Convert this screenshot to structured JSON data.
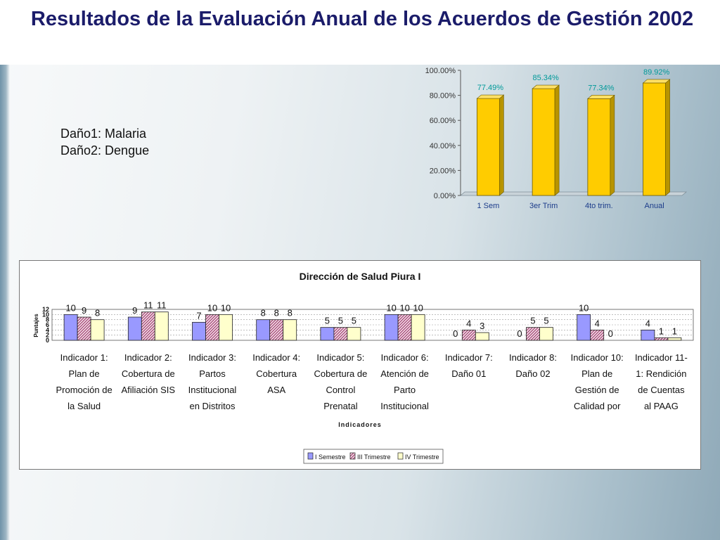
{
  "slide": {
    "title": "Resultados de la Evaluación Anual de los Acuerdos de Gestión 2002",
    "notes": [
      "Daño1: Malaria",
      "Daño2: Dengue"
    ]
  },
  "colors": {
    "title": "#1b1c6a",
    "annual_bar": "#ffcc00",
    "annual_label": "#009999",
    "series1": "#9999ff",
    "series2": "#993366",
    "series3": "#ffffcc"
  },
  "chart_data": [
    {
      "type": "bar",
      "categories": [
        "1 Sem",
        "3er Trim",
        "4to trim.",
        "Anual"
      ],
      "values": [
        77.49,
        85.34,
        77.34,
        89.92
      ],
      "value_labels": [
        "77.49%",
        "85.34%",
        "77.34%",
        "89.92%"
      ],
      "ylim": [
        0,
        100
      ],
      "yticks": [
        "0.00%",
        "20.00%",
        "40.00%",
        "60.00%",
        "80.00%",
        "100.00%"
      ],
      "grid": false,
      "style": "3d"
    },
    {
      "type": "bar",
      "title": "Dirección de Salud Piura I",
      "xlabel": "Indicadores",
      "ylabel": "Puntajes",
      "yticks": [
        "0",
        "2",
        "4",
        "6",
        "8",
        "10",
        "12"
      ],
      "ylim": [
        0,
        12
      ],
      "grid": true,
      "legend_position": "bottom",
      "categories": [
        "Indicador 1: Plan de Promoción de la Salud",
        "Indicador 2: Cobertura de Afiliación SIS",
        "Indicador 3: Partos Institucional en Distritos",
        "Indicador 4: Cobertura ASA",
        "Indicador 5: Cobertura de Control Prenatal",
        "Indicador 6: Atención de Parto Institucional",
        "Indicador 7: Daño 01",
        "Indicador 8: Daño 02",
        "Indicador 10: Plan de Gestión de Calidad por",
        "Indicador 11-1: Rendición de Cuentas al PAAG"
      ],
      "category_lines": [
        [
          "Indicador 1:",
          "Plan de",
          "Promoción de",
          "la Salud"
        ],
        [
          "Indicador 2:",
          "Cobertura de",
          "Afiliación SIS"
        ],
        [
          "Indicador 3:",
          "Partos",
          "Institucional",
          "en Distritos"
        ],
        [
          "Indicador 4:",
          "Cobertura",
          "ASA"
        ],
        [
          "Indicador 5:",
          "Cobertura de",
          "Control",
          "Prenatal"
        ],
        [
          "Indicador 6:",
          "Atención de",
          "Parto",
          "Institucional"
        ],
        [
          "Indicador 7:",
          "Daño 01"
        ],
        [
          "Indicador 8:",
          "Daño 02"
        ],
        [
          "Indicador 10:",
          "Plan de",
          "Gestión de",
          "Calidad por"
        ],
        [
          "Indicador 11-",
          "1: Rendición",
          "de Cuentas",
          "al PAAG"
        ]
      ],
      "series": [
        {
          "name": "I Semestre",
          "values": [
            10,
            9,
            7,
            8,
            5,
            10,
            0,
            0,
            10,
            4
          ]
        },
        {
          "name": "III Trimestre",
          "values": [
            9,
            11,
            10,
            8,
            5,
            10,
            4,
            5,
            4,
            1
          ]
        },
        {
          "name": "IV Trimestre",
          "values": [
            8,
            11,
            10,
            8,
            5,
            10,
            3,
            5,
            0,
            1
          ]
        }
      ]
    }
  ]
}
